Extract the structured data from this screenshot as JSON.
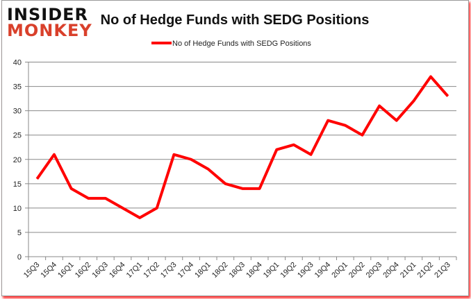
{
  "logo": {
    "line1": "INSIDER",
    "line2": "MONKEY"
  },
  "chart_data": {
    "type": "line",
    "title": "No of Hedge Funds with SEDG Positions",
    "xlabel": "",
    "ylabel": "",
    "ylim": [
      0,
      40
    ],
    "yticks": [
      0,
      5,
      10,
      15,
      20,
      25,
      30,
      35,
      40
    ],
    "grid": true,
    "legend_placement": "top-center",
    "categories": [
      "15Q3",
      "15Q4",
      "16Q1",
      "16Q2",
      "16Q3",
      "16Q4",
      "17Q1",
      "17Q2",
      "17Q3",
      "17Q4",
      "18Q1",
      "18Q2",
      "18Q3",
      "18Q4",
      "19Q1",
      "19Q2",
      "19Q3",
      "19Q4",
      "20Q1",
      "20Q2",
      "20Q3",
      "20Q4",
      "21Q1",
      "21Q2",
      "21Q3"
    ],
    "series": [
      {
        "name": "No of Hedge Funds with SEDG Positions",
        "color": "#ff0000",
        "values": [
          16,
          21,
          14,
          12,
          12,
          10,
          8,
          10,
          21,
          20,
          18,
          15,
          14,
          14,
          22,
          23,
          21,
          28,
          27,
          25,
          31,
          28,
          32,
          37,
          33
        ]
      }
    ]
  }
}
